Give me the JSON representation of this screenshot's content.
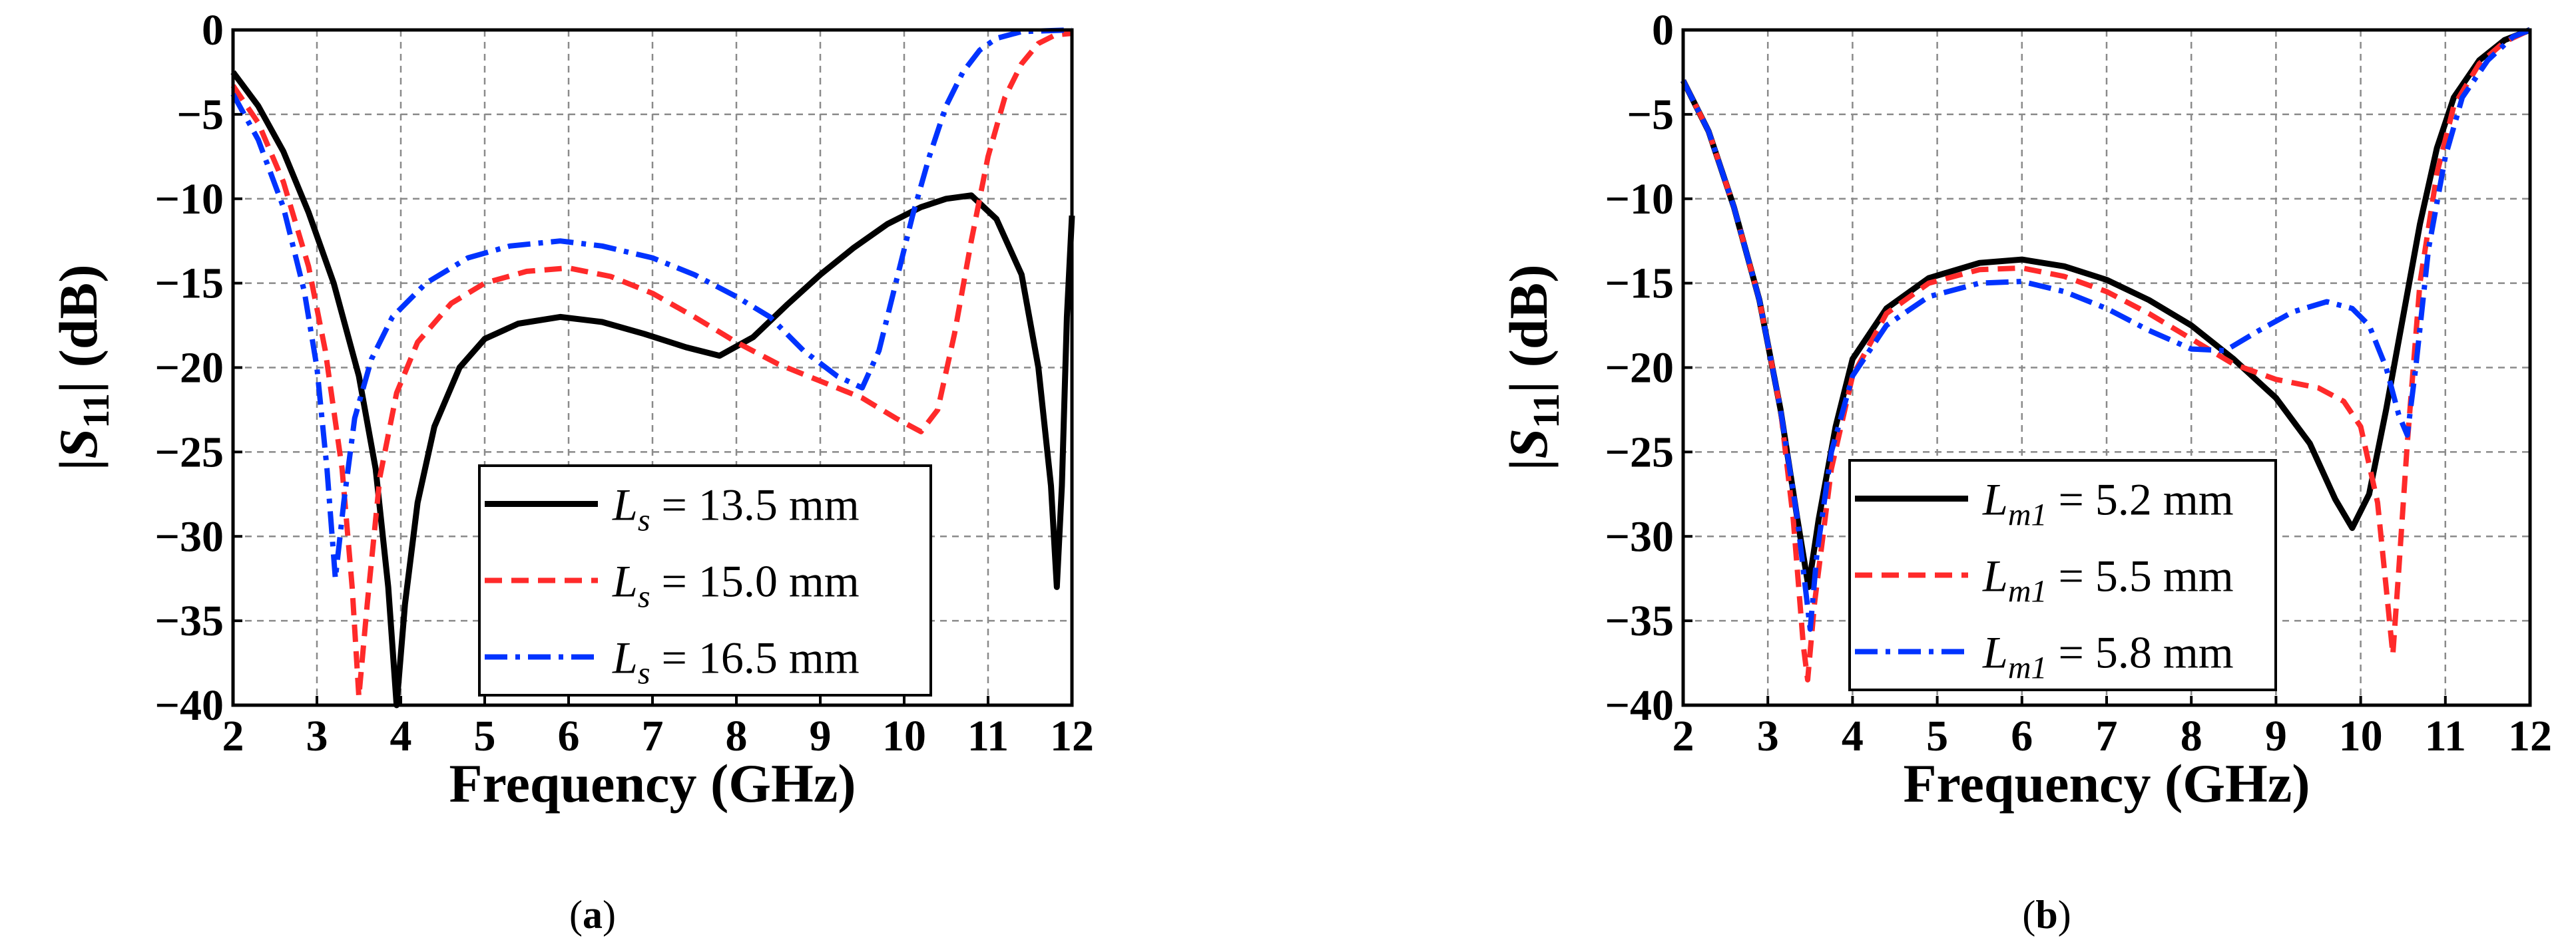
{
  "chart_data": [
    {
      "type": "line",
      "caption": "(a)",
      "caption_letter": "a",
      "xlabel": "Frequency (GHz)",
      "ylabel": "|S11| (dB)",
      "xlim": [
        2,
        12
      ],
      "ylim": [
        -40,
        0
      ],
      "xticks": [
        2,
        3,
        4,
        5,
        6,
        7,
        8,
        9,
        10,
        11,
        12
      ],
      "yticks": [
        0,
        -5,
        -10,
        -15,
        -20,
        -25,
        -30,
        -35,
        -40
      ],
      "grid": true,
      "legend_position": "bottom-right",
      "series": [
        {
          "name": "Ls = 13.5 mm",
          "symbol": "L",
          "subscript": "s",
          "value_label": "= 13.5 mm",
          "color": "#000000",
          "style": "solid",
          "points": [
            [
              2,
              -2.5
            ],
            [
              2.3,
              -4.5
            ],
            [
              2.6,
              -7.2
            ],
            [
              2.9,
              -10.8
            ],
            [
              3.2,
              -15
            ],
            [
              3.5,
              -20.5
            ],
            [
              3.7,
              -26
            ],
            [
              3.85,
              -33
            ],
            [
              3.95,
              -40
            ],
            [
              4.05,
              -34
            ],
            [
              4.2,
              -28
            ],
            [
              4.4,
              -23.5
            ],
            [
              4.7,
              -20
            ],
            [
              5,
              -18.3
            ],
            [
              5.4,
              -17.4
            ],
            [
              5.9,
              -17
            ],
            [
              6.4,
              -17.3
            ],
            [
              6.9,
              -18
            ],
            [
              7.4,
              -18.8
            ],
            [
              7.8,
              -19.3
            ],
            [
              8.2,
              -18.2
            ],
            [
              8.6,
              -16.3
            ],
            [
              9,
              -14.5
            ],
            [
              9.4,
              -12.9
            ],
            [
              9.8,
              -11.5
            ],
            [
              10.2,
              -10.5
            ],
            [
              10.5,
              -10
            ],
            [
              10.8,
              -9.8
            ],
            [
              11.1,
              -11.2
            ],
            [
              11.4,
              -14.5
            ],
            [
              11.6,
              -20
            ],
            [
              11.75,
              -27
            ],
            [
              11.82,
              -33
            ],
            [
              11.88,
              -27
            ],
            [
              11.94,
              -17
            ],
            [
              12,
              -11
            ]
          ]
        },
        {
          "name": "Ls = 15.0 mm",
          "symbol": "L",
          "subscript": "s",
          "value_label": "= 15.0 mm",
          "color": "#ff2a2a",
          "style": "dash",
          "points": [
            [
              2,
              -3.3
            ],
            [
              2.3,
              -5.5
            ],
            [
              2.6,
              -9
            ],
            [
              2.9,
              -14
            ],
            [
              3.1,
              -19
            ],
            [
              3.3,
              -26
            ],
            [
              3.42,
              -33
            ],
            [
              3.5,
              -39.5
            ],
            [
              3.6,
              -34
            ],
            [
              3.75,
              -26.5
            ],
            [
              3.95,
              -21.5
            ],
            [
              4.2,
              -18.5
            ],
            [
              4.6,
              -16.2
            ],
            [
              5,
              -15
            ],
            [
              5.5,
              -14.3
            ],
            [
              6,
              -14.1
            ],
            [
              6.5,
              -14.6
            ],
            [
              7,
              -15.6
            ],
            [
              7.5,
              -17
            ],
            [
              8,
              -18.5
            ],
            [
              8.5,
              -19.8
            ],
            [
              9,
              -20.8
            ],
            [
              9.5,
              -21.8
            ],
            [
              9.9,
              -23
            ],
            [
              10.2,
              -23.8
            ],
            [
              10.4,
              -22.5
            ],
            [
              10.6,
              -18
            ],
            [
              10.8,
              -12.5
            ],
            [
              11,
              -7.5
            ],
            [
              11.2,
              -4
            ],
            [
              11.4,
              -2
            ],
            [
              11.6,
              -0.8
            ],
            [
              11.8,
              -0.3
            ],
            [
              12,
              -0.2
            ]
          ]
        },
        {
          "name": "Ls = 16.5 mm",
          "symbol": "L",
          "subscript": "s",
          "value_label": "= 16.5 mm",
          "color": "#0033ff",
          "style": "dashdot",
          "points": [
            [
              2,
              -3.8
            ],
            [
              2.3,
              -6.5
            ],
            [
              2.6,
              -10.5
            ],
            [
              2.85,
              -15.5
            ],
            [
              3,
              -20
            ],
            [
              3.12,
              -26
            ],
            [
              3.22,
              -32.5
            ],
            [
              3.32,
              -28
            ],
            [
              3.45,
              -23
            ],
            [
              3.65,
              -19.5
            ],
            [
              3.9,
              -17
            ],
            [
              4.3,
              -15
            ],
            [
              4.8,
              -13.5
            ],
            [
              5.3,
              -12.8
            ],
            [
              5.9,
              -12.5
            ],
            [
              6.4,
              -12.8
            ],
            [
              7,
              -13.5
            ],
            [
              7.5,
              -14.5
            ],
            [
              8,
              -15.8
            ],
            [
              8.4,
              -17
            ],
            [
              8.8,
              -19
            ],
            [
              9.2,
              -20.5
            ],
            [
              9.5,
              -21.2
            ],
            [
              9.7,
              -19
            ],
            [
              9.9,
              -15
            ],
            [
              10.1,
              -11
            ],
            [
              10.3,
              -7.5
            ],
            [
              10.5,
              -4.5
            ],
            [
              10.7,
              -2.5
            ],
            [
              10.9,
              -1.2
            ],
            [
              11.1,
              -0.5
            ],
            [
              11.4,
              -0.1
            ],
            [
              12,
              0
            ]
          ]
        }
      ]
    },
    {
      "type": "line",
      "caption": "(b)",
      "caption_letter": "b",
      "xlabel": "Frequency (GHz)",
      "ylabel": "|S11| (dB)",
      "xlim": [
        2,
        12
      ],
      "ylim": [
        -40,
        0
      ],
      "xticks": [
        2,
        3,
        4,
        5,
        6,
        7,
        8,
        9,
        10,
        11,
        12
      ],
      "yticks": [
        0,
        -5,
        -10,
        -15,
        -20,
        -25,
        -30,
        -35,
        -40
      ],
      "grid": true,
      "legend_position": "bottom-left",
      "series": [
        {
          "name": "Lm1 = 5.2 mm",
          "symbol": "L",
          "subscript": "m1",
          "value_label": "= 5.2 mm",
          "color": "#000000",
          "style": "solid",
          "points": [
            [
              2,
              -3
            ],
            [
              2.3,
              -6
            ],
            [
              2.6,
              -10.5
            ],
            [
              2.9,
              -16
            ],
            [
              3.15,
              -22.5
            ],
            [
              3.35,
              -29
            ],
            [
              3.48,
              -33
            ],
            [
              3.6,
              -29
            ],
            [
              3.8,
              -23.5
            ],
            [
              4,
              -19.5
            ],
            [
              4.4,
              -16.5
            ],
            [
              4.9,
              -14.7
            ],
            [
              5.5,
              -13.8
            ],
            [
              6,
              -13.6
            ],
            [
              6.5,
              -14
            ],
            [
              7,
              -14.8
            ],
            [
              7.5,
              -16
            ],
            [
              8,
              -17.5
            ],
            [
              8.5,
              -19.5
            ],
            [
              9,
              -21.8
            ],
            [
              9.4,
              -24.5
            ],
            [
              9.7,
              -27.8
            ],
            [
              9.9,
              -29.5
            ],
            [
              10.1,
              -27.5
            ],
            [
              10.3,
              -22.5
            ],
            [
              10.5,
              -17
            ],
            [
              10.7,
              -11.5
            ],
            [
              10.9,
              -7
            ],
            [
              11.1,
              -4
            ],
            [
              11.4,
              -1.8
            ],
            [
              11.7,
              -0.6
            ],
            [
              12,
              0
            ]
          ]
        },
        {
          "name": "Lm1 = 5.5 mm",
          "symbol": "L",
          "subscript": "m1",
          "value_label": "= 5.5 mm",
          "color": "#ff2a2a",
          "style": "dash",
          "points": [
            [
              2,
              -3
            ],
            [
              2.3,
              -6
            ],
            [
              2.6,
              -10.5
            ],
            [
              2.9,
              -16
            ],
            [
              3.15,
              -22.5
            ],
            [
              3.3,
              -29
            ],
            [
              3.42,
              -36.5
            ],
            [
              3.47,
              -38.5
            ],
            [
              3.55,
              -34
            ],
            [
              3.75,
              -26
            ],
            [
              4,
              -20.5
            ],
            [
              4.4,
              -16.8
            ],
            [
              4.9,
              -15
            ],
            [
              5.5,
              -14.2
            ],
            [
              6,
              -14.1
            ],
            [
              6.5,
              -14.6
            ],
            [
              7,
              -15.5
            ],
            [
              7.5,
              -16.8
            ],
            [
              8,
              -18.3
            ],
            [
              8.5,
              -19.8
            ],
            [
              9,
              -20.7
            ],
            [
              9.5,
              -21.2
            ],
            [
              9.8,
              -22
            ],
            [
              10,
              -23.5
            ],
            [
              10.2,
              -28
            ],
            [
              10.3,
              -33
            ],
            [
              10.38,
              -37
            ],
            [
              10.45,
              -32
            ],
            [
              10.55,
              -24.5
            ],
            [
              10.7,
              -15
            ],
            [
              10.9,
              -8.5
            ],
            [
              11.1,
              -4.5
            ],
            [
              11.4,
              -2
            ],
            [
              11.7,
              -0.7
            ],
            [
              12,
              0
            ]
          ]
        },
        {
          "name": "Lm1 = 5.8 mm",
          "symbol": "L",
          "subscript": "m1",
          "value_label": "= 5.8 mm",
          "color": "#0033ff",
          "style": "dashdot",
          "points": [
            [
              2,
              -3
            ],
            [
              2.3,
              -6
            ],
            [
              2.6,
              -10.5
            ],
            [
              2.9,
              -16
            ],
            [
              3.15,
              -22.5
            ],
            [
              3.35,
              -29
            ],
            [
              3.5,
              -35.5
            ],
            [
              3.58,
              -31
            ],
            [
              3.75,
              -25
            ],
            [
              4,
              -20.5
            ],
            [
              4.4,
              -17.5
            ],
            [
              4.9,
              -15.8
            ],
            [
              5.5,
              -15
            ],
            [
              6,
              -14.9
            ],
            [
              6.5,
              -15.5
            ],
            [
              7,
              -16.5
            ],
            [
              7.5,
              -17.8
            ],
            [
              8,
              -18.9
            ],
            [
              8.4,
              -19
            ],
            [
              8.8,
              -17.8
            ],
            [
              9.2,
              -16.7
            ],
            [
              9.6,
              -16.1
            ],
            [
              9.9,
              -16.5
            ],
            [
              10.1,
              -17.5
            ],
            [
              10.3,
              -20
            ],
            [
              10.45,
              -22.8
            ],
            [
              10.55,
              -24
            ],
            [
              10.65,
              -20
            ],
            [
              10.8,
              -13
            ],
            [
              11,
              -7.5
            ],
            [
              11.2,
              -4
            ],
            [
              11.5,
              -1.8
            ],
            [
              11.8,
              -0.4
            ],
            [
              12,
              0
            ]
          ]
        }
      ]
    }
  ]
}
